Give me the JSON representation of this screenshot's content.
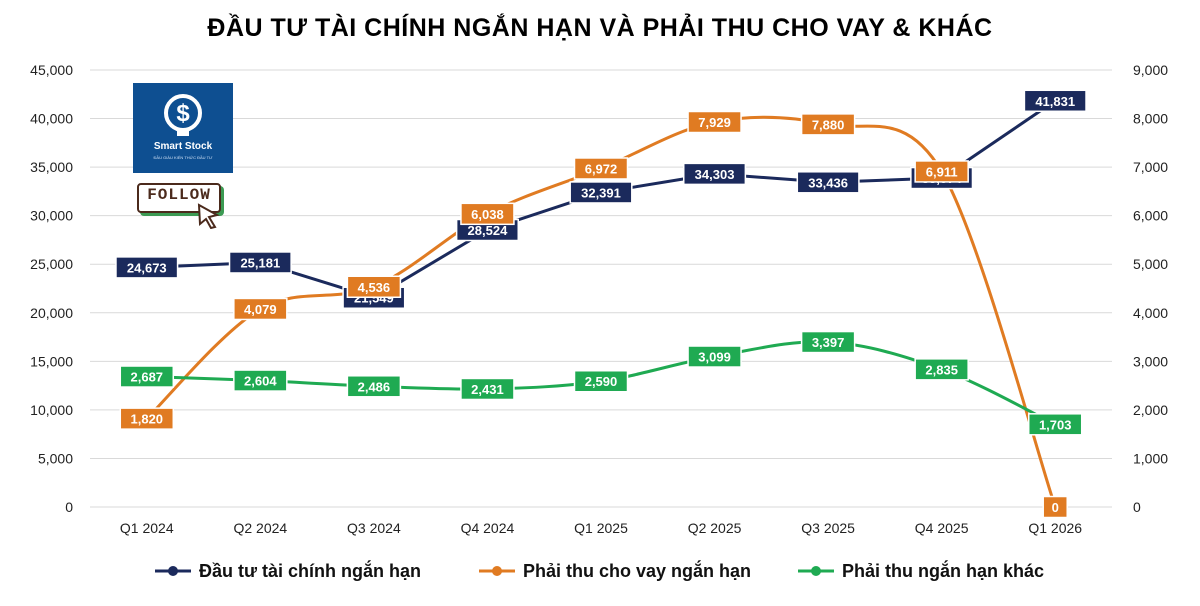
{
  "title": "ĐẦU TƯ TÀI CHÍNH NGẮN HẠN VÀ PHẢI THU CHO VAY & KHÁC",
  "logo": {
    "brand": "Smart Stock",
    "tagline": "ĐẦU GIÀU KIẾN THỨC ĐẦU TƯ"
  },
  "follow_badge": "FOLLOW",
  "colors": {
    "navy": "#1b2a5c",
    "orange": "#e07b22",
    "green": "#1faa52",
    "grid": "#d9d9d9"
  },
  "chart_data": {
    "type": "line",
    "title": "ĐẦU TƯ TÀI CHÍNH NGẮN HẠN VÀ PHẢI THU CHO VAY & KHÁC",
    "categories": [
      "Q1 2024",
      "Q2 2024",
      "Q3 2024",
      "Q4 2024",
      "Q1 2025",
      "Q2 2025",
      "Q3 2025",
      "Q4 2025",
      "Q1 2026"
    ],
    "y_left": {
      "min": 0,
      "max": 45000,
      "step": 5000,
      "ticks": [
        "0",
        "5,000",
        "10,000",
        "15,000",
        "20,000",
        "25,000",
        "30,000",
        "35,000",
        "40,000",
        "45,000"
      ]
    },
    "y_right": {
      "min": 0,
      "max": 9000,
      "step": 1000,
      "ticks": [
        "0",
        "1,000",
        "2,000",
        "3,000",
        "4,000",
        "5,000",
        "6,000",
        "7,000",
        "8,000",
        "9,000"
      ]
    },
    "grid": true,
    "legend_position": "bottom",
    "series": [
      {
        "name": "Đầu tư tài chính ngắn hạn",
        "axis": "left",
        "color": "#1b2a5c",
        "values": [
          24673,
          25181,
          21549,
          28524,
          32391,
          34303,
          33436,
          33874,
          41831
        ],
        "labels": [
          "24,673",
          "25,181",
          "21,549",
          "28,524",
          "32,391",
          "34,303",
          "33,436",
          "33,874",
          "41,831"
        ]
      },
      {
        "name": "Phải thu cho vay ngắn hạn",
        "axis": "right",
        "color": "#e07b22",
        "values": [
          1820,
          4079,
          4536,
          6038,
          6972,
          7929,
          7880,
          6911,
          0
        ],
        "labels": [
          "1,820",
          "4,079",
          "4,536",
          "6,038",
          "6,972",
          "7,929",
          "7,880",
          "6,911",
          "0"
        ]
      },
      {
        "name": "Phải thu ngắn hạn khác",
        "axis": "right",
        "color": "#1faa52",
        "values": [
          2687,
          2604,
          2486,
          2431,
          2590,
          3099,
          3397,
          2835,
          1703
        ],
        "labels": [
          "2,687",
          "2,604",
          "2,486",
          "2,431",
          "2,590",
          "3,099",
          "3,397",
          "2,835",
          "1,703"
        ]
      }
    ]
  }
}
